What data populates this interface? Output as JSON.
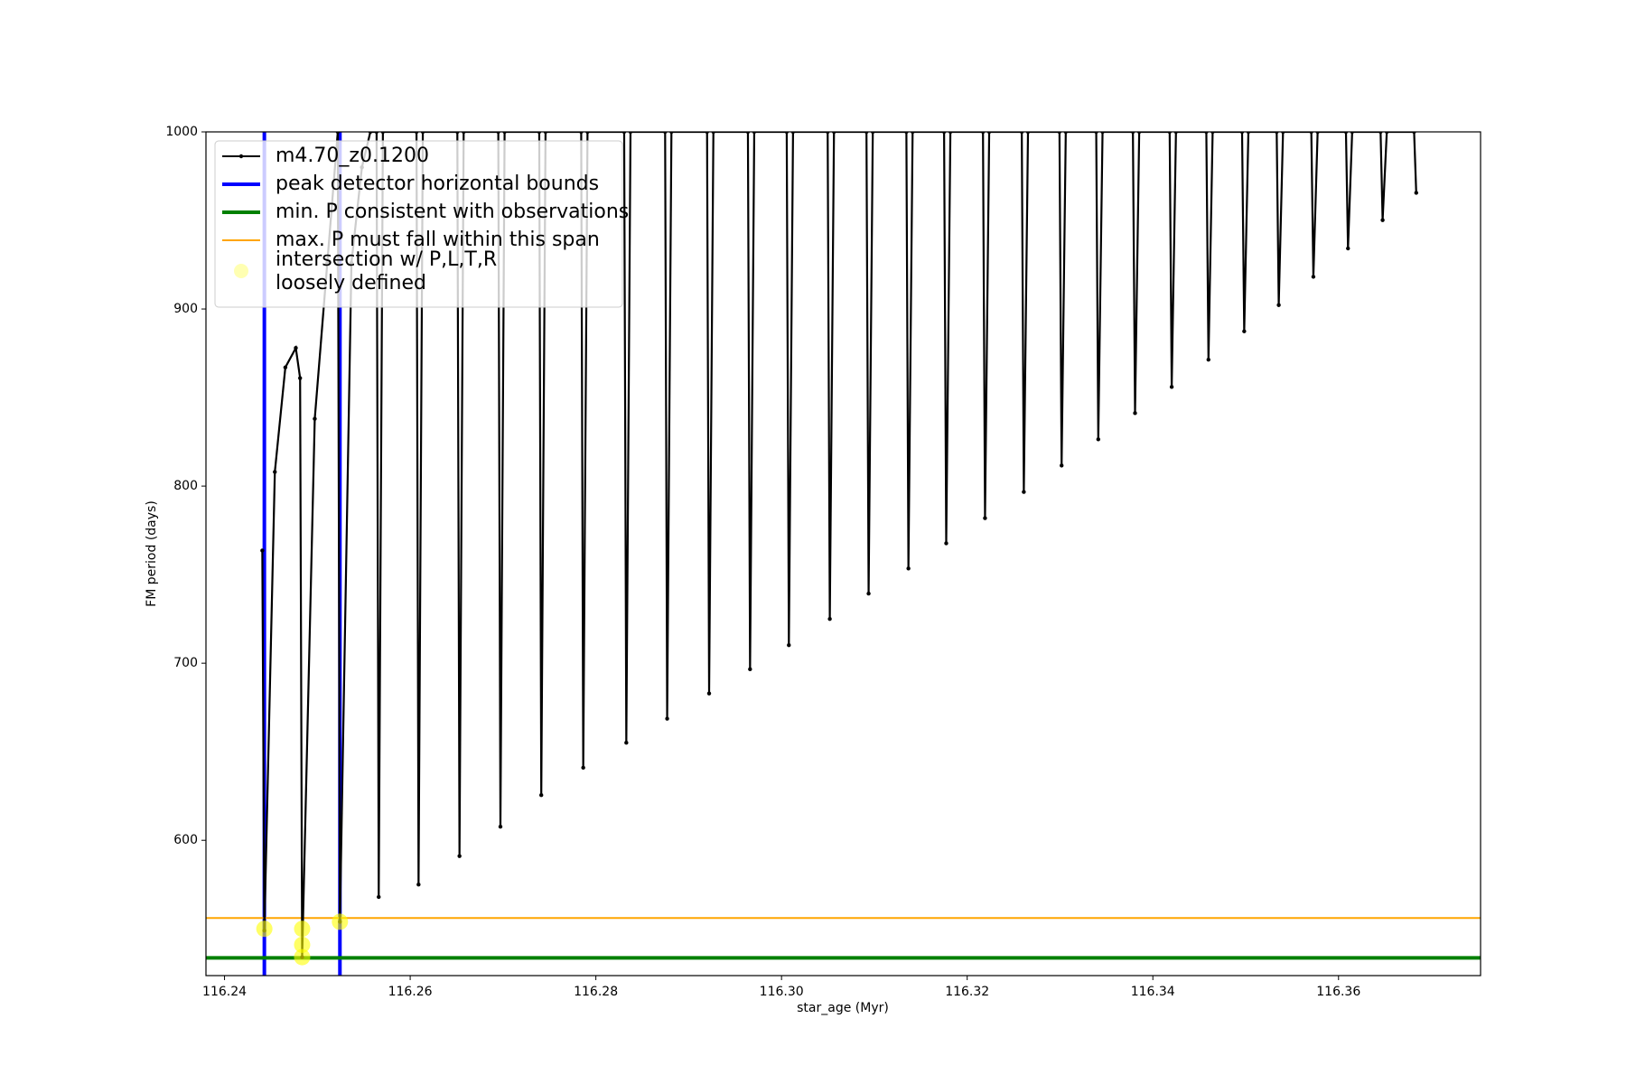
{
  "chart_data": {
    "type": "line",
    "x_label": "star_age (Myr)",
    "y_label": "FM period (days)",
    "xlim": [
      116.238,
      116.3753
    ],
    "ylim": [
      523.6,
      1000
    ],
    "xticks": [
      116.24,
      116.26,
      116.28,
      {
        "value": 116.3,
        "label": "116.30"
      },
      116.32,
      116.34,
      116.36
    ],
    "yticks": [
      600,
      700,
      800,
      900,
      1000
    ],
    "legend": "upper left",
    "series": [
      {
        "name": "m4.70_z0.1200",
        "color": "#000000",
        "x": [
          116.24407,
          116.24429,
          116.24542,
          116.24655,
          116.24768,
          116.24814,
          116.24836,
          116.24972,
          116.25107,
          116.2522,
          116.25243,
          116.25367,
          116.2548,
          116.25571,
          116.25638,
          116.25661,
          116.25706,
          116.26068,
          116.2609,
          116.26136,
          116.26508,
          116.26531,
          116.26576,
          116.26949,
          116.26972,
          116.27017,
          116.2739,
          116.27412,
          116.27458,
          116.27842,
          116.27864,
          116.2791,
          116.28305,
          116.28328,
          116.28373,
          116.28746,
          116.28768,
          116.28814,
          116.29198,
          116.2922,
          116.29266,
          116.29638,
          116.29661,
          116.29706,
          116.30056,
          116.30079,
          116.30124,
          116.30497,
          116.3052,
          116.30565,
          116.30915,
          116.30938,
          116.30983,
          116.31345,
          116.31367,
          116.31412,
          116.31751,
          116.31774,
          116.31819,
          116.3217,
          116.32192,
          116.32237,
          116.32588,
          116.3261,
          116.32655,
          116.32994,
          116.33017,
          116.33062,
          116.3339,
          116.33412,
          116.33458,
          116.33785,
          116.33808,
          116.33853,
          116.34181,
          116.34203,
          116.34249,
          116.34576,
          116.34599,
          116.34644,
          116.34961,
          116.34984,
          116.35029,
          116.35334,
          116.35356,
          116.35402,
          116.35707,
          116.35729,
          116.35775,
          116.3608,
          116.36102,
          116.36147,
          116.36453,
          116.36475,
          116.3652,
          116.36814,
          116.36837
        ],
        "values": [
          763.6,
          549,
          808,
          867,
          878,
          861,
          534,
          838,
          926,
          1000,
          554,
          926,
          980,
          1000,
          1000,
          568,
          1000,
          1000,
          575,
          1000,
          1000,
          591.1,
          1000,
          1000,
          607.7,
          1000,
          1000,
          625.5,
          1000,
          1000,
          641,
          1000,
          1000,
          655.1,
          1000,
          1000,
          668.7,
          1000,
          1000,
          682.9,
          1000,
          1000,
          696.6,
          1000,
          1000,
          710.2,
          1000,
          1000,
          725,
          1000,
          1000,
          739.3,
          1000,
          1000,
          753.5,
          1000,
          1000,
          767.7,
          1000,
          1000,
          781.9,
          1000,
          1000,
          796.7,
          1000,
          1000,
          811.6,
          1000,
          1000,
          826.4,
          1000,
          1000,
          841.2,
          1000,
          1000,
          856,
          1000,
          1000,
          871.4,
          1000,
          1000,
          887.4,
          1000,
          1000,
          902.2,
          1000,
          1000,
          918.2,
          1000,
          1000,
          934.2,
          1000,
          1000,
          950.2,
          1000,
          1000,
          965.6
        ]
      }
    ],
    "reference_lines": [
      {
        "name": "peak detector horizontal bounds",
        "color": "#0000ff",
        "orientation": "vertical",
        "values": [
          116.24429,
          116.25243
        ]
      },
      {
        "name": "min. P consistent with observations",
        "color": "#008000",
        "orientation": "horizontal",
        "values": [
          533.6
        ]
      },
      {
        "name": "max. P must fall within this span",
        "color": "#ffa500",
        "orientation": "horizontal",
        "values": [
          556.1
        ]
      }
    ],
    "points": {
      "name": "intersection w/ P,L,T,R\nloosely defined",
      "color": "#ffff00",
      "x": [
        116.24429,
        116.24836,
        116.24836,
        116.24836,
        116.25243
      ],
      "values": [
        550,
        550,
        541,
        534,
        554
      ]
    }
  }
}
